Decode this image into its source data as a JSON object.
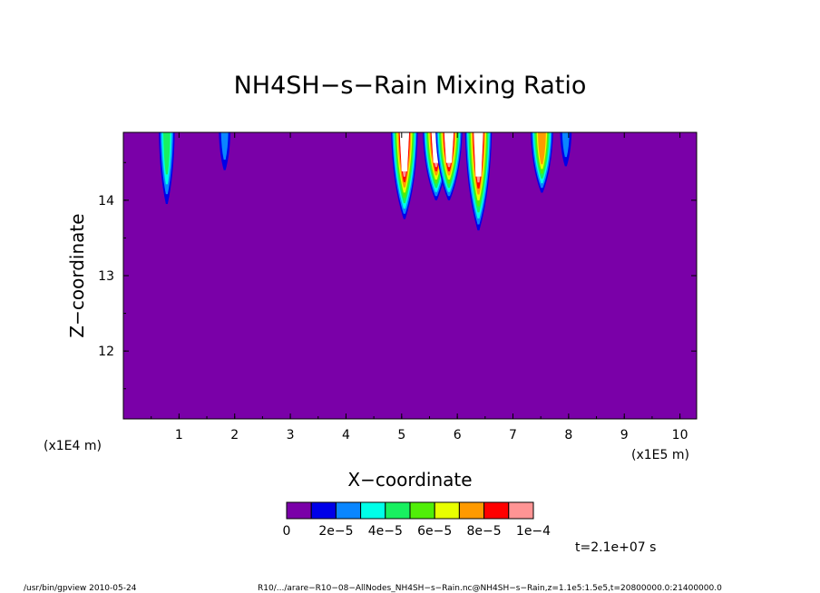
{
  "chart_data": {
    "type": "heatmap",
    "title": "NH4SH−s−Rain Mixing Ratio",
    "xlabel": "X−coordinate",
    "ylabel": "Z−coordinate",
    "x_scale_label": "(x1E5 m)",
    "y_scale_label": "(x1E4 m)",
    "xlim": [
      0,
      10.3
    ],
    "ylim": [
      11.1,
      14.9
    ],
    "x_ticks": [
      "1",
      "2",
      "3",
      "4",
      "5",
      "6",
      "7",
      "8",
      "9",
      "10"
    ],
    "y_ticks": [
      "12",
      "13",
      "14"
    ],
    "background_value": 0,
    "colorbar": {
      "levels": [
        0,
        1e-05,
        2e-05,
        3e-05,
        4e-05,
        5e-05,
        6e-05,
        7e-05,
        8e-05,
        9e-05,
        0.0001
      ],
      "labels": [
        "0",
        "2e−5",
        "4e−5",
        "6e−5",
        "8e−5",
        "1e−4"
      ],
      "colors": [
        "#7a00a8",
        "#0000e8",
        "#0a86ff",
        "#00ffe8",
        "#18f060",
        "#50ee08",
        "#e8ff00",
        "#ff9a00",
        "#ff0000",
        "#ff9494"
      ]
    },
    "features": [
      {
        "x": 0.78,
        "z_bottom": 13.95,
        "max_level": 4
      },
      {
        "x": 1.82,
        "z_bottom": 14.4,
        "max_level": 2
      },
      {
        "x": 5.05,
        "z_bottom": 13.75,
        "max_level": 9
      },
      {
        "x": 5.62,
        "z_bottom": 14.0,
        "max_level": 9
      },
      {
        "x": 5.85,
        "z_bottom": 14.0,
        "max_level": 9
      },
      {
        "x": 6.38,
        "z_bottom": 13.6,
        "max_level": 9
      },
      {
        "x": 7.52,
        "z_bottom": 14.1,
        "max_level": 7
      },
      {
        "x": 7.95,
        "z_bottom": 14.45,
        "max_level": 2
      }
    ]
  },
  "time_label": "t=2.1e+07 s",
  "footer": {
    "left": "/usr/bin/gpview  2010-05-24",
    "right": "R10/.../arare−R10−08−AllNodes_NH4SH−s−Rain.nc@NH4SH−s−Rain,z=1.1e5:1.5e5,t=20800000.0:21400000.0"
  }
}
